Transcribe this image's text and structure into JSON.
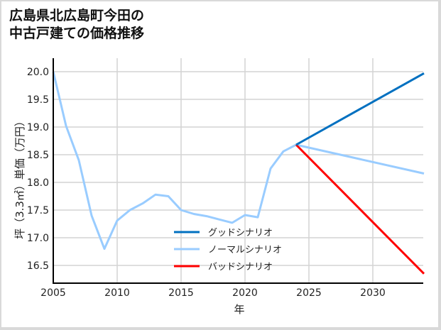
{
  "title_lines": [
    "広島県北広島町今田の",
    "中古戸建ての価格推移"
  ],
  "chart_data": {
    "type": "line",
    "title": "広島県北広島町今田の中古戸建ての価格推移",
    "xlabel": "年",
    "ylabel": "坪（3.3㎡）単価（万円）",
    "xlim": [
      2005,
      2034
    ],
    "ylim": [
      16.15,
      20.0
    ],
    "xticks": [
      2005,
      2010,
      2015,
      2020,
      2025,
      2030
    ],
    "yticks": [
      16.5,
      17.0,
      17.5,
      18.0,
      18.5,
      19.0,
      19.5,
      20.0
    ],
    "ytick_labels": [
      "16.5",
      "17.0",
      "17.5",
      "18.0",
      "18.5",
      "19.0",
      "19.5",
      "20.0"
    ],
    "grid": true,
    "legend_position": "lower center (inside plot)",
    "history": {
      "x": [
        2005,
        2006,
        2007,
        2008,
        2009,
        2010,
        2011,
        2012,
        2013,
        2014,
        2015,
        2016,
        2017,
        2018,
        2019,
        2020,
        2021,
        2022,
        2023,
        2024
      ],
      "values": [
        20.0,
        19.02,
        18.4,
        17.4,
        16.8,
        17.31,
        17.5,
        17.62,
        17.78,
        17.75,
        17.5,
        17.43,
        17.39,
        17.33,
        17.27,
        17.41,
        17.37,
        18.25,
        18.56,
        18.68
      ]
    },
    "series": [
      {
        "name": "グッドシナリオ",
        "color": "#0070c0",
        "x": [
          2024,
          2034
        ],
        "values": [
          18.68,
          19.97
        ]
      },
      {
        "name": "ノーマルシナリオ",
        "color": "#99ccff",
        "x": [
          2024,
          2034
        ],
        "values": [
          18.68,
          18.16
        ]
      },
      {
        "name": "バッドシナリオ",
        "color": "#ff0000",
        "x": [
          2024,
          2034
        ],
        "values": [
          18.68,
          16.35
        ]
      }
    ],
    "history_color": "#99ccff"
  }
}
